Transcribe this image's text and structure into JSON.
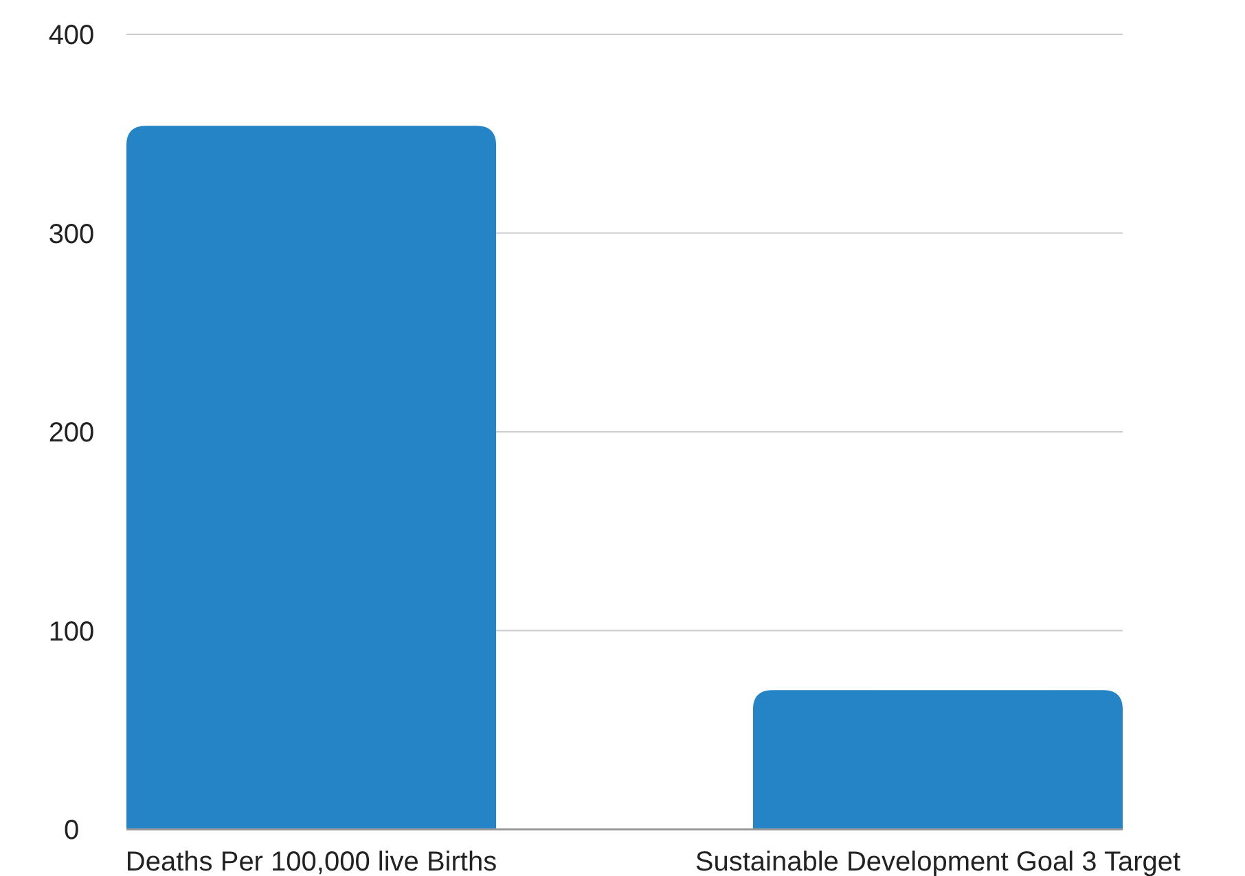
{
  "chart_data": {
    "type": "bar",
    "categories": [
      "Deaths Per 100,000 live Births",
      "Sustainable Development Goal 3 Target"
    ],
    "values": [
      354,
      70
    ],
    "color": "#2484c6",
    "ylim": [
      0,
      400
    ],
    "yticks": [
      0,
      100,
      200,
      300,
      400
    ],
    "grid": "y"
  }
}
